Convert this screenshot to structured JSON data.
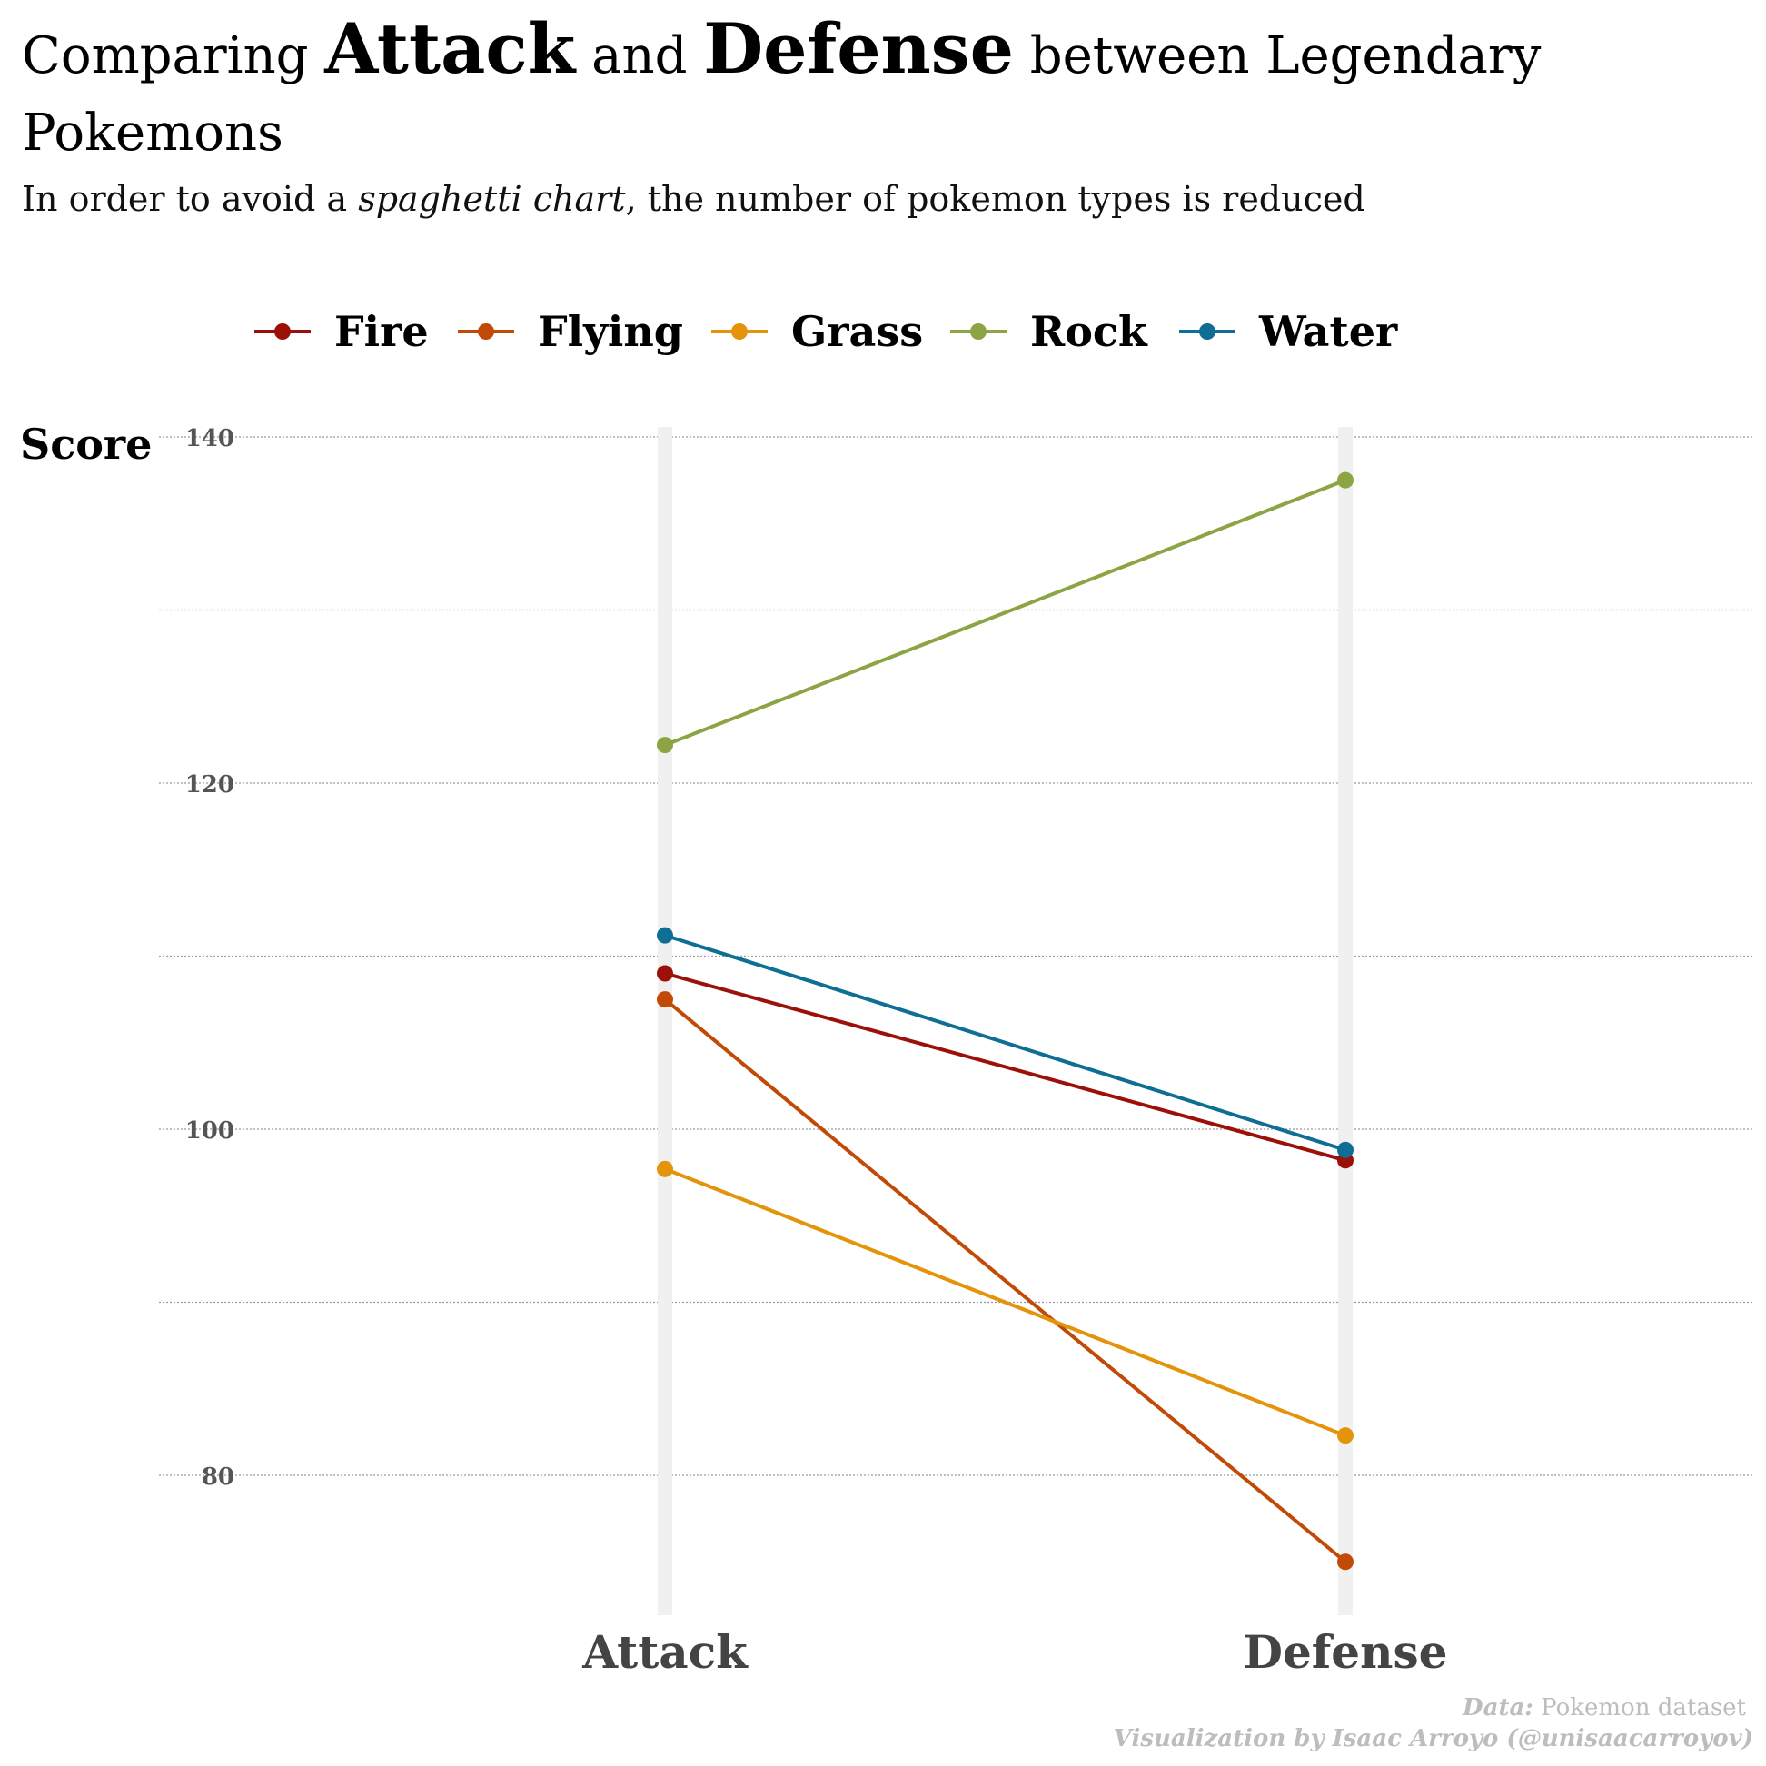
{
  "title": {
    "part1": "Comparing ",
    "bold1": "Attack",
    "part2": " and ",
    "bold2": "Defense",
    "part3": " between Legendary",
    "line2": "Pokemons"
  },
  "subtitle": {
    "pre": "In order to avoid a ",
    "italic": "spaghetti chart",
    "post": ", the number of pokemon types is reduced"
  },
  "caption": {
    "data_label": "Data:",
    "data_value": " Pokemon dataset",
    "credit": "Visualization by Isaac Arroyo (@unisaacarroyov)"
  },
  "chart_data": {
    "type": "line",
    "categories": [
      "Attack",
      "Defense"
    ],
    "ylabel": "Score",
    "ylim": [
      73,
      141
    ],
    "yticks": [
      80,
      100,
      120,
      140
    ],
    "grid": true,
    "legend_position": "top",
    "series": [
      {
        "name": "Fire",
        "color": "#9b1008",
        "values": [
          109,
          98.2
        ]
      },
      {
        "name": "Flying",
        "color": "#c24a07",
        "values": [
          107.5,
          75
        ]
      },
      {
        "name": "Grass",
        "color": "#e4940a",
        "values": [
          97.7,
          82.3
        ]
      },
      {
        "name": "Rock",
        "color": "#8da444",
        "values": [
          122.2,
          137.5
        ]
      },
      {
        "name": "Water",
        "color": "#0f6e94",
        "values": [
          111.2,
          98.8
        ]
      }
    ]
  }
}
